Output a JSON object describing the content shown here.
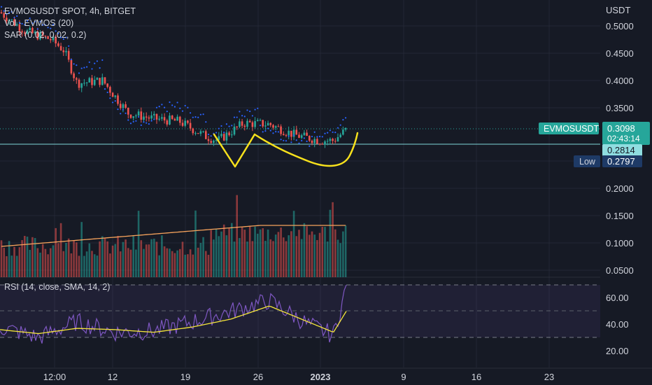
{
  "legend": {
    "line1": "EVMOSUSDT SPOT, 4h, BITGET",
    "line2": "Vol · EVMOS (20)",
    "line3": "SAR (0.02, 0.02, 0.2)",
    "rsi": "RSI (14, close, SMA, 14, 2)"
  },
  "price_axis": {
    "currency": "USDT",
    "ticks": [
      "0.5000",
      "0.4500",
      "0.4000",
      "0.3500",
      "0.2000",
      "0.1500",
      "0.1000",
      "0.0500"
    ]
  },
  "rsi_axis": {
    "ticks": [
      "60.00",
      "40.00",
      "20.00"
    ]
  },
  "time_axis": {
    "ticks": [
      "12:00",
      "12",
      "19",
      "26",
      "2023",
      "9",
      "16",
      "23"
    ]
  },
  "price_labels": {
    "symbol": "EVMOSUSDT",
    "last_price": "0.3098",
    "countdown": "02:43:14",
    "line_price": "0.2814",
    "low_label": "Low",
    "low_price": "0.2797"
  },
  "colors": {
    "background": "#161a25",
    "up": "#26a69a",
    "down": "#ef5350",
    "sar": "#2962ff",
    "vol_ma": "#f7a35c",
    "rsi": "#7e57c2",
    "rsi_ma": "#f5e63a",
    "drawing": "#f7e11c",
    "horizontal_line": "#7fd6d6"
  },
  "chart_data": [
    {
      "type": "candlestick",
      "title": "EVMOSUSDT SPOT, 4h, BITGET",
      "ylabel": "USDT",
      "ylim": [
        0.05,
        0.53
      ],
      "x_ticks": [
        "12:00",
        "12",
        "19",
        "26",
        "2023",
        "9",
        "16",
        "23"
      ],
      "x": [
        "2022-12-07",
        "2022-12-09",
        "2022-12-11",
        "2022-12-12",
        "2022-12-13",
        "2022-12-15",
        "2022-12-17",
        "2022-12-19",
        "2022-12-21",
        "2022-12-23",
        "2022-12-24",
        "2022-12-26",
        "2022-12-28",
        "2022-12-30",
        "2023-01-01",
        "2023-01-02",
        "2023-01-03"
      ],
      "close": [
        0.525,
        0.49,
        0.475,
        0.455,
        0.395,
        0.4,
        0.34,
        0.33,
        0.325,
        0.298,
        0.29,
        0.322,
        0.32,
        0.3,
        0.29,
        0.29,
        0.31
      ],
      "last_price": 0.3098,
      "horizontal_line": 0.2814,
      "low": 0.2797
    },
    {
      "type": "bar",
      "title": "Vol · EVMOS (20)",
      "note": "volume histogram with moving average overlay; values not labeled"
    },
    {
      "type": "line",
      "title": "RSI (14, close, SMA, 14, 2)",
      "ylim": [
        14,
        74
      ],
      "y_ticks": [
        60,
        40,
        20
      ],
      "bands": [
        70,
        50,
        30
      ],
      "x": [
        "2022-12-07",
        "2022-12-10",
        "2022-12-13",
        "2022-12-16",
        "2022-12-19",
        "2022-12-22",
        "2022-12-25",
        "2022-12-28",
        "2022-12-31",
        "2023-01-02",
        "2023-01-03"
      ],
      "series": [
        {
          "values": [
            38,
            30,
            42,
            34,
            35,
            42,
            50,
            58,
            40,
            32,
            68
          ]
        },
        {
          "values": [
            36,
            33,
            37,
            36,
            34,
            38,
            44,
            54,
            42,
            34,
            50
          ]
        }
      ]
    }
  ]
}
